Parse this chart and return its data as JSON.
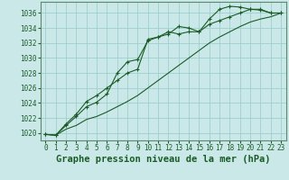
{
  "title": "Graphe pression niveau de la mer (hPa)",
  "background_color": "#cbe8e8",
  "grid_color": "#9ecece",
  "line_color": "#1a5c28",
  "marker": "+",
  "xlim": [
    -0.5,
    23.5
  ],
  "ylim": [
    1019.0,
    1037.5
  ],
  "yticks": [
    1020,
    1022,
    1024,
    1026,
    1028,
    1030,
    1032,
    1034,
    1036
  ],
  "xticks": [
    0,
    1,
    2,
    3,
    4,
    5,
    6,
    7,
    8,
    9,
    10,
    11,
    12,
    13,
    14,
    15,
    16,
    17,
    18,
    19,
    20,
    21,
    22,
    23
  ],
  "line1_x": [
    0,
    1,
    2,
    3,
    4,
    5,
    6,
    7,
    8,
    9,
    10,
    11,
    12,
    13,
    14,
    15,
    16,
    17,
    18,
    19,
    20,
    21,
    22,
    23
  ],
  "line1_y": [
    1019.8,
    1019.7,
    1021.0,
    1022.2,
    1023.5,
    1024.1,
    1025.2,
    1028.0,
    1029.5,
    1029.8,
    1032.3,
    1032.8,
    1033.2,
    1034.2,
    1034.0,
    1033.5,
    1035.2,
    1036.5,
    1036.9,
    1036.8,
    1036.5,
    1036.4,
    1036.0,
    1036.0
  ],
  "line2_x": [
    0,
    1,
    2,
    3,
    4,
    5,
    6,
    7,
    8,
    9,
    10,
    11,
    12,
    13,
    14,
    15,
    16,
    17,
    18,
    19,
    20,
    21,
    22,
    23
  ],
  "line2_y": [
    1019.8,
    1019.7,
    1021.2,
    1022.5,
    1024.2,
    1025.0,
    1026.0,
    1027.0,
    1028.0,
    1028.5,
    1032.5,
    1032.8,
    1033.5,
    1033.2,
    1033.5,
    1033.5,
    1034.5,
    1035.0,
    1035.5,
    1036.0,
    1036.5,
    1036.5,
    1036.0,
    1036.0
  ],
  "line3_x": [
    0,
    1,
    2,
    3,
    4,
    5,
    6,
    7,
    8,
    9,
    10,
    11,
    12,
    13,
    14,
    15,
    16,
    17,
    18,
    19,
    20,
    21,
    22,
    23
  ],
  "line3_y": [
    1019.8,
    1019.7,
    1020.5,
    1021.0,
    1021.8,
    1022.2,
    1022.8,
    1023.5,
    1024.2,
    1025.0,
    1026.0,
    1027.0,
    1028.0,
    1029.0,
    1030.0,
    1031.0,
    1032.0,
    1032.8,
    1033.5,
    1034.2,
    1034.8,
    1035.2,
    1035.5,
    1036.0
  ],
  "title_fontsize": 7.5,
  "tick_fontsize": 5.5
}
